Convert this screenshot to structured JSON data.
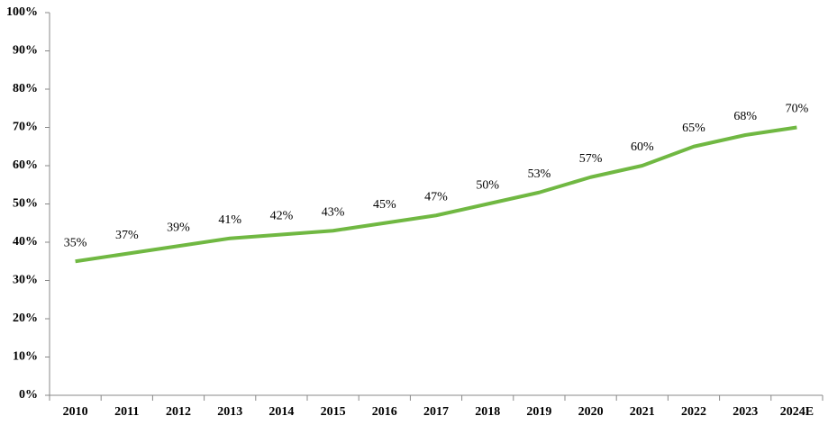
{
  "chart_data": {
    "type": "line",
    "categories": [
      "2010",
      "2011",
      "2012",
      "2013",
      "2014",
      "2015",
      "2016",
      "2017",
      "2018",
      "2019",
      "2020",
      "2021",
      "2022",
      "2023",
      "2024E"
    ],
    "values": [
      35,
      37,
      39,
      41,
      42,
      43,
      45,
      47,
      50,
      53,
      57,
      60,
      65,
      68,
      70
    ],
    "value_labels": [
      "35%",
      "37%",
      "39%",
      "41%",
      "42%",
      "43%",
      "45%",
      "47%",
      "50%",
      "53%",
      "57%",
      "60%",
      "65%",
      "68%",
      "70%"
    ],
    "color": "#70b842",
    "ylim": [
      0,
      100
    ],
    "yticks": [
      {
        "value": 0,
        "label": "0%"
      },
      {
        "value": 10,
        "label": "10%"
      },
      {
        "value": 20,
        "label": "20%"
      },
      {
        "value": 30,
        "label": "30%"
      },
      {
        "value": 40,
        "label": "40%"
      },
      {
        "value": 50,
        "label": "50%"
      },
      {
        "value": 60,
        "label": "60%"
      },
      {
        "value": 70,
        "label": "70%"
      },
      {
        "value": 80,
        "label": "80%"
      },
      {
        "value": 90,
        "label": "90%"
      },
      {
        "value": 100,
        "label": "100%"
      }
    ],
    "grid": false
  }
}
